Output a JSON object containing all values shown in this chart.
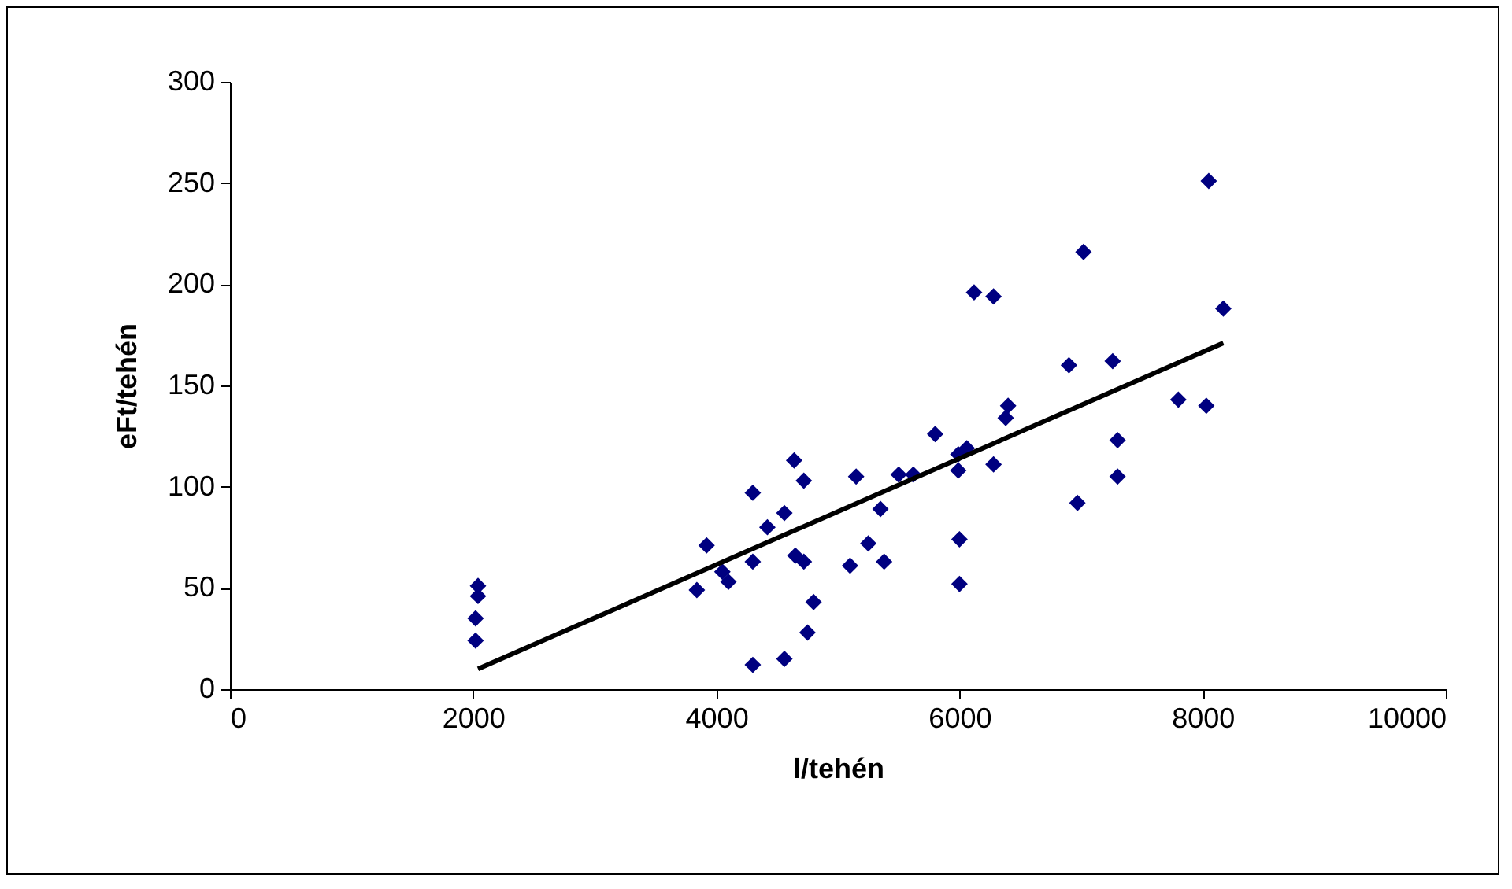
{
  "chart_data": {
    "type": "scatter",
    "xlabel": "l/tehén",
    "ylabel": "eFt/tehén",
    "xlim": [
      0,
      10000
    ],
    "xticks": [
      0,
      2000,
      4000,
      6000,
      8000,
      10000
    ],
    "ylim": [
      0,
      300
    ],
    "yticks": [
      0,
      50,
      100,
      150,
      200,
      250,
      300
    ],
    "grid": false,
    "marker": "diamond",
    "series": [
      {
        "color": "#000080",
        "x": [
          2040,
          2040,
          2020,
          2020,
          3840,
          3920,
          4050,
          4100,
          4300,
          4300,
          4300,
          4420,
          4560,
          4560,
          4640,
          4650,
          4720,
          4720,
          4750,
          4800,
          5100,
          5150,
          5250,
          5350,
          5380,
          5500,
          5620,
          5800,
          5990,
          5990,
          6000,
          6000,
          6060,
          6120,
          6280,
          6280,
          6380,
          6400,
          6900,
          6970,
          7020,
          7260,
          7300,
          7300,
          7800,
          8030,
          8050,
          8170
        ],
        "values": [
          51,
          46,
          35,
          24,
          49,
          71,
          58,
          53,
          97,
          63,
          12,
          80,
          87,
          15,
          113,
          66,
          103,
          63,
          28,
          43,
          61,
          105,
          72,
          89,
          63,
          106,
          106,
          126,
          116,
          108,
          74,
          52,
          119,
          196,
          194,
          111,
          134,
          140,
          160,
          92,
          216,
          162,
          123,
          105,
          143,
          140,
          251,
          188
        ]
      },
      {
        "type": "line",
        "color": "#000000",
        "marker": "none",
        "x": [
          2040,
          8170
        ],
        "values": [
          10,
          171
        ]
      }
    ]
  }
}
